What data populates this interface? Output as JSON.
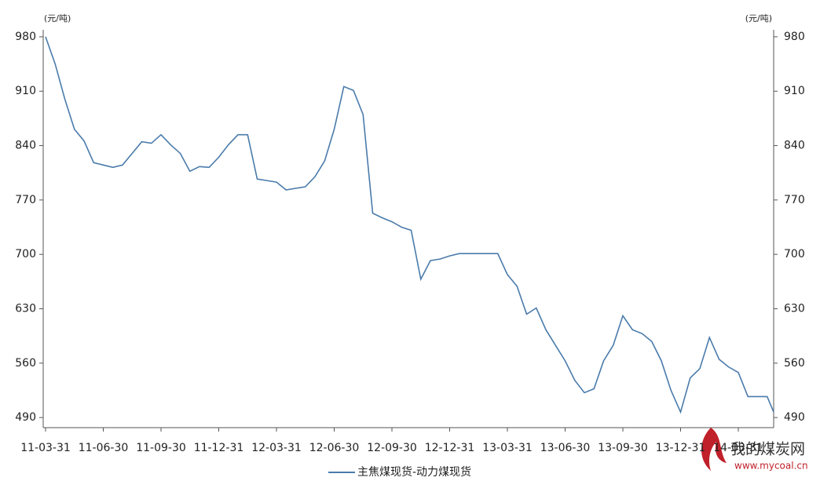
{
  "chart_data": {
    "type": "line",
    "y_label": "(元/吨)",
    "y2_label": "(元/吨)",
    "categories": [
      "11-03-31",
      null,
      null,
      null,
      null,
      null,
      "11-06-30",
      null,
      null,
      null,
      null,
      null,
      "11-09-30",
      null,
      null,
      null,
      null,
      null,
      "11-12-31",
      null,
      null,
      null,
      null,
      null,
      "12-03-31",
      null,
      null,
      null,
      null,
      null,
      "12-06-30",
      null,
      null,
      null,
      null,
      null,
      "12-09-30",
      null,
      null,
      null,
      null,
      null,
      "12-12-31",
      null,
      null,
      null,
      null,
      null,
      "13-03-31",
      null,
      null,
      null,
      null,
      null,
      "13-06-30",
      null,
      null,
      null,
      null,
      null,
      "13-09-30",
      null,
      null,
      null,
      null,
      null,
      "13-12-31",
      null,
      null,
      null,
      null,
      null,
      "14-03-31",
      null,
      null,
      null,
      null
    ],
    "series": [
      {
        "name": "主焦煤现货-动力煤现货",
        "color": "#4a7bab",
        "values": [
          980,
          945,
          900,
          861,
          846,
          818,
          815,
          812,
          815,
          830,
          845,
          843,
          854,
          841,
          830,
          807,
          813,
          812,
          825,
          841,
          854,
          854,
          797,
          795,
          793,
          783,
          785,
          787,
          800,
          820,
          861,
          916,
          911,
          880,
          753,
          747,
          742,
          735,
          731,
          668,
          692,
          694,
          698,
          701,
          701,
          701,
          701,
          701,
          674,
          659,
          623,
          631,
          603,
          583,
          563,
          538,
          522,
          527,
          563,
          583,
          621,
          603,
          598,
          588,
          563,
          525,
          497,
          541,
          553,
          593,
          565,
          555,
          548,
          517,
          517,
          517,
          497
        ]
      }
    ],
    "ylim": [
      477,
      989
    ],
    "yticks": [
      490,
      560,
      630,
      700,
      770,
      840,
      910,
      980
    ],
    "y2lim": [
      477,
      989
    ],
    "y2ticks": [
      490,
      560,
      630,
      700,
      770,
      840,
      910,
      980
    ],
    "grid": false,
    "legend": "bottom",
    "watermark": {
      "title": "我的煤炭网",
      "url": "www.mycoal.cn"
    }
  }
}
